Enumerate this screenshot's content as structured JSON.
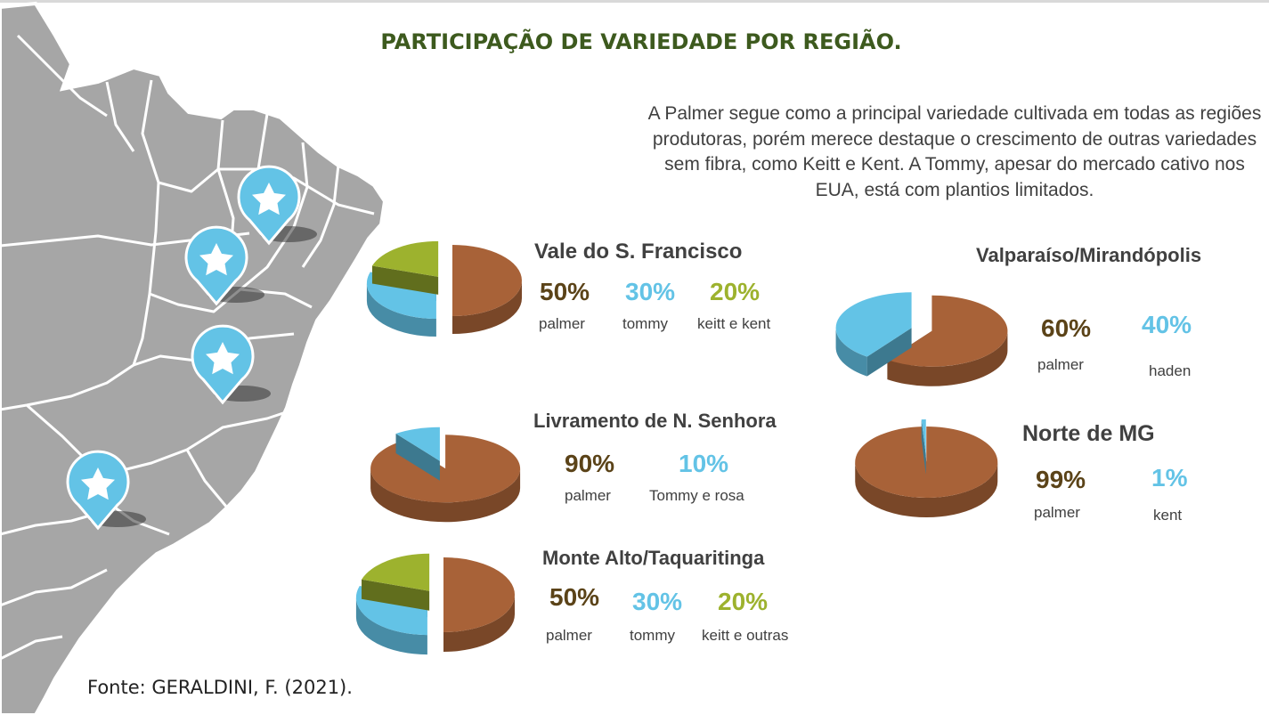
{
  "title": "PARTICIPAÇÃO DE VARIEDADE POR REGIÃO.",
  "description": "A Palmer segue como a principal variedade cultivada em todas as regiões produtoras, porém merece destaque o crescimento de outras variedades sem fibra, como Keitt e Kent. A Tommy, apesar do mercado cativo nos EUA, está com plantios limitados.",
  "source": "Fonte: GERALDINI, F. (2021).",
  "colors": {
    "palmer": "#a86238",
    "tommy": "#63c3e6",
    "keitt": "#9db22e",
    "title": "#3d5a1e",
    "palmer_text": "#5b4318"
  },
  "map": {
    "pin_icon": "star-icon",
    "pin_count": 4
  },
  "chart_data": [
    {
      "type": "pie",
      "title": "Vale do S. Francisco",
      "slices": [
        {
          "label": "palmer",
          "value": 50,
          "display": "50%",
          "color": "#a86238",
          "text_color": "#5b4318"
        },
        {
          "label": "tommy",
          "value": 30,
          "display": "30%",
          "color": "#63c3e6",
          "text_color": "#63c3e6"
        },
        {
          "label": "keitt e kent",
          "value": 20,
          "display": "20%",
          "color": "#9db22e",
          "text_color": "#9db22e"
        }
      ]
    },
    {
      "type": "pie",
      "title": "Livramento de N. Senhora",
      "slices": [
        {
          "label": "palmer",
          "value": 90,
          "display": "90%",
          "color": "#a86238",
          "text_color": "#5b4318"
        },
        {
          "label": "Tommy e rosa",
          "value": 10,
          "display": "10%",
          "color": "#63c3e6",
          "text_color": "#63c3e6"
        }
      ]
    },
    {
      "type": "pie",
      "title": "Monte Alto/Taquaritinga",
      "slices": [
        {
          "label": "palmer",
          "value": 50,
          "display": "50%",
          "color": "#a86238",
          "text_color": "#5b4318"
        },
        {
          "label": "tommy",
          "value": 30,
          "display": "30%",
          "color": "#63c3e6",
          "text_color": "#63c3e6"
        },
        {
          "label": "keitt e outras",
          "value": 20,
          "display": "20%",
          "color": "#9db22e",
          "text_color": "#9db22e"
        }
      ]
    },
    {
      "type": "pie",
      "title": "Valparaíso/Mirandópolis",
      "slices": [
        {
          "label": "palmer",
          "value": 60,
          "display": "60%",
          "color": "#a86238",
          "text_color": "#5b4318"
        },
        {
          "label": "haden",
          "value": 40,
          "display": "40%",
          "color": "#63c3e6",
          "text_color": "#63c3e6"
        }
      ]
    },
    {
      "type": "pie",
      "title": "Norte de MG",
      "slices": [
        {
          "label": "palmer",
          "value": 99,
          "display": "99%",
          "color": "#a86238",
          "text_color": "#5b4318"
        },
        {
          "label": "kent",
          "value": 1,
          "display": "1%",
          "color": "#63c3e6",
          "text_color": "#63c3e6"
        }
      ]
    }
  ]
}
